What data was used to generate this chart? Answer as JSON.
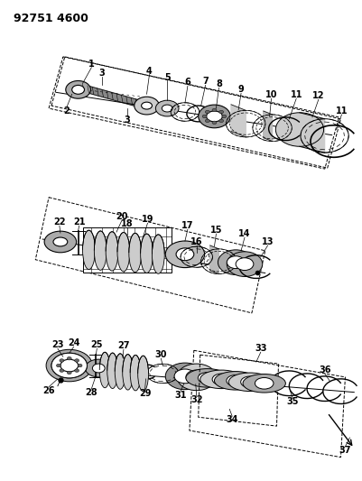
{
  "title": "92751 4600",
  "bg_color": "#ffffff",
  "lc": "#000000",
  "fig_width": 4.01,
  "fig_height": 5.33,
  "dpi": 100
}
